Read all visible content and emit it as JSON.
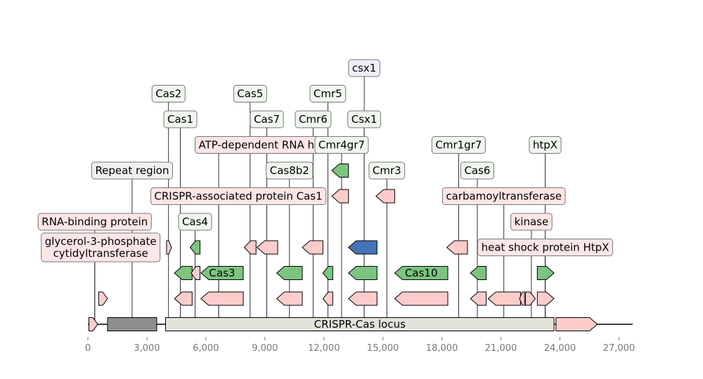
{
  "axis": {
    "min": 0,
    "max": 27700,
    "ticks": [
      0,
      3000,
      6000,
      9000,
      12000,
      15000,
      18000,
      21000,
      24000,
      27000
    ],
    "tick_labels": [
      "0",
      "3,000",
      "6,000",
      "9,000",
      "12,000",
      "15,000",
      "18,000",
      "21,000",
      "24,000",
      "27,000"
    ]
  },
  "colors": {
    "green": "#7cc47f",
    "pink": "#ffcccc",
    "blue": "#4573b5",
    "gray": "#8f8f8f",
    "light_gray": "#e3e3dc",
    "label_green": "#eff7ee",
    "label_pink": "#ffe6e6",
    "label_blue": "#eef0f8",
    "label_gray": "#f0f0f0"
  },
  "track": {
    "segments": [
      {
        "name": "Repeat region",
        "start": 1000,
        "end": 3500,
        "fill": "gray",
        "text": ""
      },
      {
        "name": "CRISPR-Cas locus",
        "start": 3950,
        "end": 23700,
        "fill": "light_gray",
        "text": "CRISPR-Cas locus"
      }
    ],
    "features": [
      {
        "start": 50,
        "end": 500,
        "strand": 1,
        "fill": "pink"
      },
      {
        "start": 23800,
        "end": 25900,
        "strand": 1,
        "fill": "pink"
      }
    ]
  },
  "genes": [
    {
      "start": 550,
      "end": 1000,
      "strand": 1,
      "row": 1,
      "fill": "pink",
      "text": ""
    },
    {
      "start": 4000,
      "end": 4250,
      "strand": 1,
      "row": 3,
      "fill": "pink",
      "text": ""
    },
    {
      "start": 4050,
      "end": 4300,
      "strand": 1,
      "row": 5,
      "fill": "green",
      "text": ""
    },
    {
      "start": 4400,
      "end": 5300,
      "strand": -1,
      "row": 1,
      "fill": "pink",
      "text": ""
    },
    {
      "start": 4400,
      "end": 5300,
      "strand": -1,
      "row": 2,
      "fill": "green",
      "text": ""
    },
    {
      "start": 5250,
      "end": 5700,
      "strand": -1,
      "row": 2,
      "fill": "pink",
      "text": ""
    },
    {
      "start": 5200,
      "end": 5700,
      "strand": -1,
      "row": 3,
      "fill": "green",
      "text": ""
    },
    {
      "start": 5750,
      "end": 7900,
      "strand": -1,
      "row": 1,
      "fill": "pink",
      "text": ""
    },
    {
      "start": 5750,
      "end": 7900,
      "strand": -1,
      "row": 2,
      "fill": "green",
      "text": "Cas3"
    },
    {
      "start": 7950,
      "end": 8550,
      "strand": -1,
      "row": 3,
      "fill": "pink",
      "text": ""
    },
    {
      "start": 7950,
      "end": 8550,
      "strand": -1,
      "row": 5,
      "fill": "green",
      "text": ""
    },
    {
      "start": 8600,
      "end": 9650,
      "strand": -1,
      "row": 3,
      "fill": "pink",
      "text": ""
    },
    {
      "start": 8600,
      "end": 9650,
      "strand": -1,
      "row": 5,
      "fill": "green",
      "text": ""
    },
    {
      "start": 9600,
      "end": 10900,
      "strand": -1,
      "row": 1,
      "fill": "pink",
      "text": ""
    },
    {
      "start": 9600,
      "end": 10900,
      "strand": -1,
      "row": 2,
      "fill": "green",
      "text": ""
    },
    {
      "start": 10900,
      "end": 11950,
      "strand": -1,
      "row": 3,
      "fill": "pink",
      "text": ""
    },
    {
      "start": 10900,
      "end": 11950,
      "strand": -1,
      "row": 5,
      "fill": "green",
      "text": ""
    },
    {
      "start": 11950,
      "end": 12450,
      "strand": -1,
      "row": 1,
      "fill": "pink",
      "text": ""
    },
    {
      "start": 11950,
      "end": 12450,
      "strand": -1,
      "row": 2,
      "fill": "green",
      "text": ""
    },
    {
      "start": 12400,
      "end": 13250,
      "strand": -1,
      "row": 5,
      "fill": "pink",
      "text": ""
    },
    {
      "start": 12400,
      "end": 13250,
      "strand": -1,
      "row": 6,
      "fill": "green",
      "text": ""
    },
    {
      "start": 13250,
      "end": 14700,
      "strand": -1,
      "row": 1,
      "fill": "pink",
      "text": ""
    },
    {
      "start": 13250,
      "end": 14700,
      "strand": -1,
      "row": 2,
      "fill": "green",
      "text": ""
    },
    {
      "start": 13250,
      "end": 14700,
      "strand": -1,
      "row": 3,
      "fill": "blue",
      "text": ""
    },
    {
      "start": 14650,
      "end": 15600,
      "strand": -1,
      "row": 5,
      "fill": "pink",
      "text": ""
    },
    {
      "start": 14650,
      "end": 15600,
      "strand": -1,
      "row": 6,
      "fill": "green",
      "text": ""
    },
    {
      "start": 15600,
      "end": 18300,
      "strand": -1,
      "row": 1,
      "fill": "pink",
      "text": ""
    },
    {
      "start": 15600,
      "end": 18300,
      "strand": -1,
      "row": 2,
      "fill": "green",
      "text": "Cas10"
    },
    {
      "start": 18250,
      "end": 19300,
      "strand": -1,
      "row": 3,
      "fill": "pink",
      "text": ""
    },
    {
      "start": 18250,
      "end": 19300,
      "strand": -1,
      "row": 5,
      "fill": "green",
      "text": ""
    },
    {
      "start": 19450,
      "end": 20250,
      "strand": -1,
      "row": 1,
      "fill": "pink",
      "text": ""
    },
    {
      "start": 19450,
      "end": 20250,
      "strand": -1,
      "row": 2,
      "fill": "green",
      "text": ""
    },
    {
      "start": 20350,
      "end": 22000,
      "strand": -1,
      "row": 1,
      "fill": "pink",
      "text": ""
    },
    {
      "start": 21950,
      "end": 22200,
      "strand": -1,
      "row": 1,
      "fill": "pink",
      "text": ""
    },
    {
      "start": 22250,
      "end": 22750,
      "strand": 1,
      "row": 1,
      "fill": "pink",
      "text": ""
    },
    {
      "start": 22850,
      "end": 23700,
      "strand": 1,
      "row": 1,
      "fill": "pink",
      "text": ""
    },
    {
      "start": 22850,
      "end": 23700,
      "strand": 1,
      "row": 2,
      "fill": "green",
      "text": ""
    }
  ],
  "labels": [
    {
      "text": [
        "glycerol-3-phosphate",
        "cytidyltransferase"
      ],
      "anchor": 350,
      "level": 3,
      "fill": "label_pink",
      "offset": 300
    },
    {
      "text": [
        "RNA-binding protein"
      ],
      "anchor": 350,
      "level": 4,
      "fill": "label_pink",
      "offset": 0
    },
    {
      "text": [
        "Repeat region"
      ],
      "anchor": 2250,
      "level": 6,
      "fill": "label_gray",
      "offset": 0
    },
    {
      "text": [
        "CRISPR-associated protein Cas1"
      ],
      "anchor": 6650,
      "level": 5,
      "fill": "label_pink",
      "offset": 1000
    },
    {
      "text": [
        "ATP-dependent RNA helicase"
      ],
      "anchor": 6650,
      "level": 7,
      "fill": "label_pink",
      "offset": 2850
    },
    {
      "text": [
        "Cas2"
      ],
      "anchor": 4100,
      "level": 9,
      "fill": "label_green",
      "offset": 0
    },
    {
      "text": [
        "Cas1"
      ],
      "anchor": 4700,
      "level": 8,
      "fill": "label_green",
      "offset": 0
    },
    {
      "text": [
        "Cas4"
      ],
      "anchor": 5450,
      "level": 4,
      "fill": "label_green",
      "offset": 0
    },
    {
      "text": [
        "Cas5"
      ],
      "anchor": 8250,
      "level": 9,
      "fill": "label_green",
      "offset": 0
    },
    {
      "text": [
        "Cas7"
      ],
      "anchor": 9100,
      "level": 8,
      "fill": "label_green",
      "offset": 0
    },
    {
      "text": [
        "Cas8b2"
      ],
      "anchor": 10250,
      "level": 6,
      "fill": "label_green",
      "offset": 0
    },
    {
      "text": [
        "Cmr5"
      ],
      "anchor": 12200,
      "level": 9,
      "fill": "label_green",
      "offset": 0
    },
    {
      "text": [
        "Cmr6"
      ],
      "anchor": 11450,
      "level": 8,
      "fill": "label_green",
      "offset": 0
    },
    {
      "text": [
        "Cmr4gr7"
      ],
      "anchor": 12900,
      "level": 7,
      "fill": "label_green",
      "offset": 0
    },
    {
      "text": [
        "csx1"
      ],
      "anchor": 14050,
      "level": 10,
      "fill": "label_blue",
      "offset": 0
    },
    {
      "text": [
        "Csx1"
      ],
      "anchor": 14050,
      "level": 8,
      "fill": "label_green",
      "offset": 0
    },
    {
      "text": [
        "Cmr3"
      ],
      "anchor": 15200,
      "level": 6,
      "fill": "label_green",
      "offset": 0
    },
    {
      "text": [
        "Cas6"
      ],
      "anchor": 19800,
      "level": 6,
      "fill": "label_green",
      "offset": 0
    },
    {
      "text": [
        "Cmr1gr7"
      ],
      "anchor": 18850,
      "level": 7,
      "fill": "label_green",
      "offset": 0
    },
    {
      "text": [
        "carbamoyltransferase"
      ],
      "anchor": 21150,
      "level": 5,
      "fill": "label_pink",
      "offset": 0
    },
    {
      "text": [
        "kinase"
      ],
      "anchor": 22550,
      "level": 4,
      "fill": "label_pink",
      "offset": 0
    },
    {
      "text": [
        "heat shock protein HtpX"
      ],
      "anchor": 23250,
      "level": 3,
      "fill": "label_pink",
      "offset": 0
    },
    {
      "text": [
        "htpX"
      ],
      "anchor": 23250,
      "level": 7,
      "fill": "label_green",
      "offset": 0
    }
  ]
}
